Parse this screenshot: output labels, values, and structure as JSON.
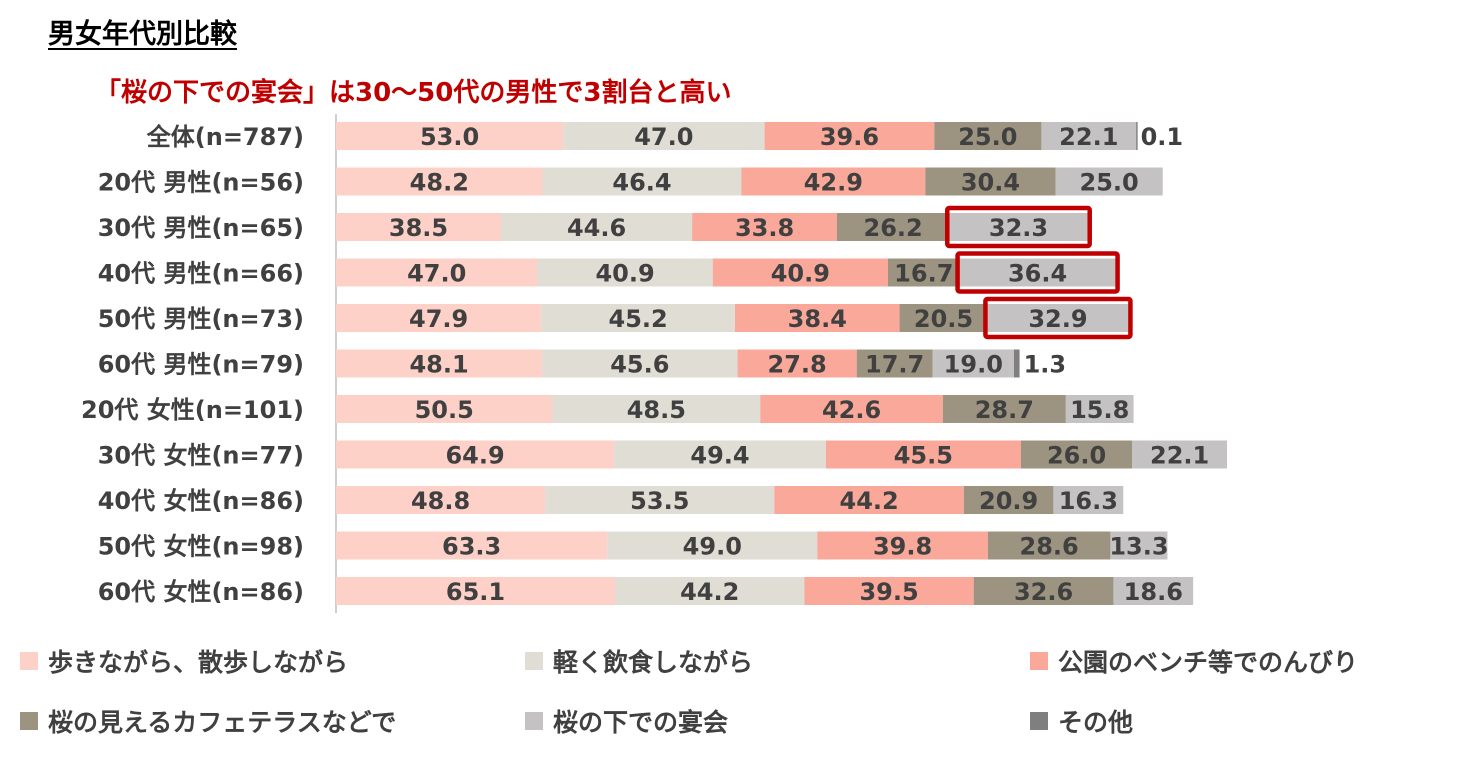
{
  "header": {
    "title": "男女年代別比較",
    "subtitle": "「桜の下での宴会」は30～50代の男性で3割台と高い"
  },
  "colors": {
    "series": [
      "#fdd0c8",
      "#e0ddd5",
      "#f9a89a",
      "#9c9480",
      "#c4c2c2",
      "#7f7f7f"
    ],
    "highlight": "#c00000",
    "axis_line": "#bfbfbf",
    "label_text": "#404040"
  },
  "chart_data": {
    "type": "bar",
    "orientation": "horizontal",
    "stacked": true,
    "title": "",
    "categories": [
      "全体(n=787)",
      "20代 男性(n=56)",
      "30代 男性(n=65)",
      "40代 男性(n=66)",
      "50代 男性(n=73)",
      "60代 男性(n=79)",
      "20代 女性(n=101)",
      "30代 女性(n=77)",
      "40代 女性(n=86)",
      "50代 女性(n=98)",
      "60代 女性(n=86)"
    ],
    "series": [
      {
        "name": "歩きながら、散歩しながら",
        "values": [
          53.0,
          48.2,
          38.5,
          47.0,
          47.9,
          48.1,
          50.5,
          64.9,
          48.8,
          63.3,
          65.1
        ]
      },
      {
        "name": "軽く飲食しながら",
        "values": [
          47.0,
          46.4,
          44.6,
          40.9,
          45.2,
          45.6,
          48.5,
          49.4,
          53.5,
          49.0,
          44.2
        ]
      },
      {
        "name": "公園のベンチ等でのんびり",
        "values": [
          39.6,
          42.9,
          33.8,
          40.9,
          38.4,
          27.8,
          42.6,
          45.5,
          44.2,
          39.8,
          39.5
        ]
      },
      {
        "name": "桜の見えるカフェテラスなどで",
        "values": [
          25.0,
          30.4,
          26.2,
          16.7,
          20.5,
          17.7,
          28.7,
          26.0,
          20.9,
          28.6,
          32.6
        ]
      },
      {
        "name": "桜の下での宴会",
        "values": [
          22.1,
          25.0,
          32.3,
          36.4,
          32.9,
          19.0,
          15.8,
          22.1,
          16.3,
          13.3,
          18.6
        ]
      },
      {
        "name": "その他",
        "values": [
          0.1,
          null,
          null,
          null,
          null,
          1.3,
          null,
          null,
          null,
          null,
          null
        ]
      }
    ],
    "highlighted": [
      {
        "category": "30代 男性(n=65)",
        "series": "桜の下での宴会"
      },
      {
        "category": "40代 男性(n=66)",
        "series": "桜の下での宴会"
      },
      {
        "category": "50代 男性(n=73)",
        "series": "桜の下での宴会"
      }
    ],
    "legend_position": "bottom",
    "grid": false
  }
}
